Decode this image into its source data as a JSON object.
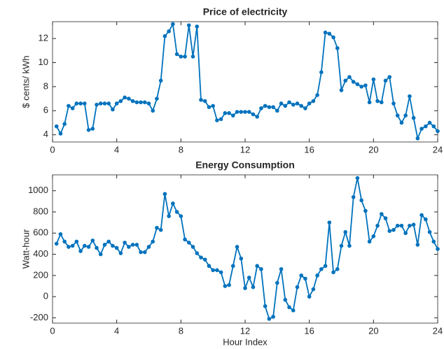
{
  "chart_data": [
    {
      "type": "line",
      "title": "Price of electricity",
      "ylabel": "$ cents/ kWh",
      "x": [
        0.25,
        0.5,
        0.75,
        1,
        1.25,
        1.5,
        1.75,
        2,
        2.25,
        2.5,
        2.75,
        3,
        3.25,
        3.5,
        3.75,
        4,
        4.25,
        4.5,
        4.75,
        5,
        5.25,
        5.5,
        5.75,
        6,
        6.25,
        6.5,
        6.75,
        7,
        7.25,
        7.5,
        7.75,
        8,
        8.25,
        8.5,
        8.75,
        9,
        9.25,
        9.5,
        9.75,
        10,
        10.25,
        10.5,
        10.75,
        11,
        11.25,
        11.5,
        11.75,
        12,
        12.25,
        12.5,
        12.75,
        13,
        13.25,
        13.5,
        13.75,
        14,
        14.25,
        14.5,
        14.75,
        15,
        15.25,
        15.5,
        15.75,
        16,
        16.25,
        16.5,
        16.75,
        17,
        17.25,
        17.5,
        17.75,
        18,
        18.25,
        18.5,
        18.75,
        19,
        19.25,
        19.5,
        19.75,
        20,
        20.25,
        20.5,
        20.75,
        21,
        21.25,
        21.5,
        21.75,
        22,
        22.25,
        22.5,
        22.75,
        23,
        23.25,
        23.5,
        23.75,
        24
      ],
      "series": [
        {
          "color": "#0072bd",
          "values": [
            4.7,
            4.1,
            4.9,
            6.4,
            6.2,
            6.6,
            6.6,
            6.6,
            4.4,
            4.5,
            6.5,
            6.6,
            6.6,
            6.6,
            6.1,
            6.6,
            6.8,
            7.1,
            7.0,
            6.8,
            6.7,
            6.7,
            6.7,
            6.6,
            6.0,
            7.0,
            8.5,
            12.2,
            12.6,
            13.2,
            10.7,
            10.5,
            10.5,
            13.1,
            10.5,
            13.0,
            6.9,
            6.8,
            6.3,
            6.4,
            5.2,
            5.3,
            5.8,
            5.8,
            5.6,
            5.9,
            5.9,
            5.9,
            5.9,
            5.7,
            5.5,
            6.2,
            6.4,
            6.3,
            6.3,
            6.0,
            6.6,
            6.4,
            6.7,
            6.5,
            6.6,
            6.4,
            6.2,
            6.6,
            6.8,
            7.3,
            9.2,
            12.5,
            12.4,
            12.1,
            11.2,
            7.7,
            8.5,
            8.8,
            8.4,
            8.2,
            8.0,
            8.1,
            6.7,
            8.6,
            6.8,
            6.7,
            8.5,
            8.8,
            6.6,
            5.6,
            5.0,
            5.6,
            7.2,
            5.4,
            3.7,
            4.5,
            4.7,
            5.0,
            4.7,
            4.3
          ]
        }
      ],
      "xlim": [
        0,
        24
      ],
      "xticks": [
        0,
        4,
        8,
        12,
        16,
        20,
        24
      ],
      "ylim": [
        3.4,
        13.4
      ],
      "yticks": [
        4,
        6,
        8,
        10,
        12
      ]
    },
    {
      "type": "line",
      "title": "Energy Consumption",
      "ylabel": "Watt-hour",
      "xlabel": "Hour Index",
      "x": [
        0.25,
        0.5,
        0.75,
        1,
        1.25,
        1.5,
        1.75,
        2,
        2.25,
        2.5,
        2.75,
        3,
        3.25,
        3.5,
        3.75,
        4,
        4.25,
        4.5,
        4.75,
        5,
        5.25,
        5.5,
        5.75,
        6,
        6.25,
        6.5,
        6.75,
        7,
        7.25,
        7.5,
        7.75,
        8,
        8.25,
        8.5,
        8.75,
        9,
        9.25,
        9.5,
        9.75,
        10,
        10.25,
        10.5,
        10.75,
        11,
        11.25,
        11.5,
        11.75,
        12,
        12.25,
        12.5,
        12.75,
        13,
        13.25,
        13.5,
        13.75,
        14,
        14.25,
        14.5,
        14.75,
        15,
        15.25,
        15.5,
        15.75,
        16,
        16.25,
        16.5,
        16.75,
        17,
        17.25,
        17.5,
        17.75,
        18,
        18.25,
        18.5,
        18.75,
        19,
        19.25,
        19.5,
        19.75,
        20,
        20.25,
        20.5,
        20.75,
        21,
        21.25,
        21.5,
        21.75,
        22,
        22.25,
        22.5,
        22.75,
        23,
        23.25,
        23.5,
        23.75,
        24
      ],
      "series": [
        {
          "color": "#0072bd",
          "values": [
            500,
            590,
            520,
            470,
            480,
            520,
            430,
            480,
            470,
            530,
            460,
            400,
            490,
            520,
            480,
            460,
            410,
            510,
            470,
            490,
            490,
            420,
            420,
            470,
            520,
            650,
            630,
            970,
            760,
            880,
            800,
            760,
            540,
            510,
            470,
            410,
            370,
            350,
            290,
            250,
            250,
            230,
            100,
            110,
            290,
            470,
            360,
            80,
            180,
            90,
            290,
            260,
            -90,
            -210,
            -190,
            130,
            260,
            -30,
            -100,
            -130,
            90,
            200,
            170,
            0,
            70,
            200,
            260,
            290,
            700,
            230,
            260,
            480,
            610,
            480,
            940,
            1120,
            910,
            810,
            520,
            570,
            670,
            780,
            740,
            620,
            630,
            670,
            670,
            600,
            670,
            680,
            490,
            770,
            730,
            610,
            520,
            450
          ]
        }
      ],
      "xlim": [
        0,
        24
      ],
      "xticks": [
        0,
        4,
        8,
        12,
        16,
        20,
        24
      ],
      "ylim": [
        -250,
        1150
      ],
      "yticks": [
        -200,
        0,
        200,
        400,
        600,
        800,
        1000
      ]
    }
  ]
}
